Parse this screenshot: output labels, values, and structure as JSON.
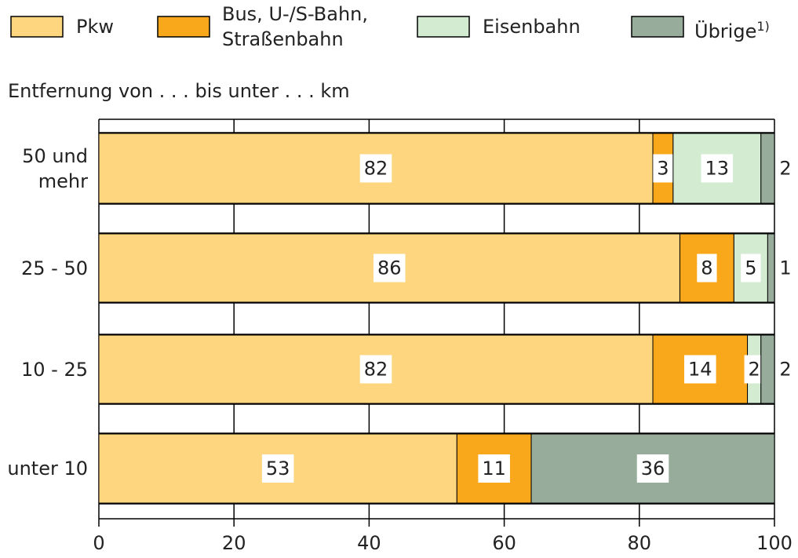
{
  "chart_data": {
    "type": "stacked_barh",
    "subtitle": "Entfernung von . . . bis unter . . . km",
    "categories": [
      "50 und mehr",
      "25 - 50",
      "10 - 25",
      "unter 10"
    ],
    "series": [
      {
        "name": "Pkw",
        "color": "#fdd67f",
        "values": [
          82,
          86,
          82,
          53
        ]
      },
      {
        "name": "Bus, U-/S-Bahn, Straßenbahn",
        "color": "#f9a81c",
        "values": [
          3,
          8,
          14,
          11
        ]
      },
      {
        "name": "Eisenbahn",
        "color": "#d3ebd0",
        "values": [
          13,
          5,
          2,
          null
        ]
      },
      {
        "name": "Übrige",
        "name_sup": "1)",
        "color": "#98ac9c",
        "values": [
          2,
          1,
          2,
          36
        ]
      }
    ],
    "xlim": [
      0,
      100
    ],
    "xticks": [
      0,
      20,
      40,
      60,
      80,
      100
    ],
    "grid": true
  }
}
